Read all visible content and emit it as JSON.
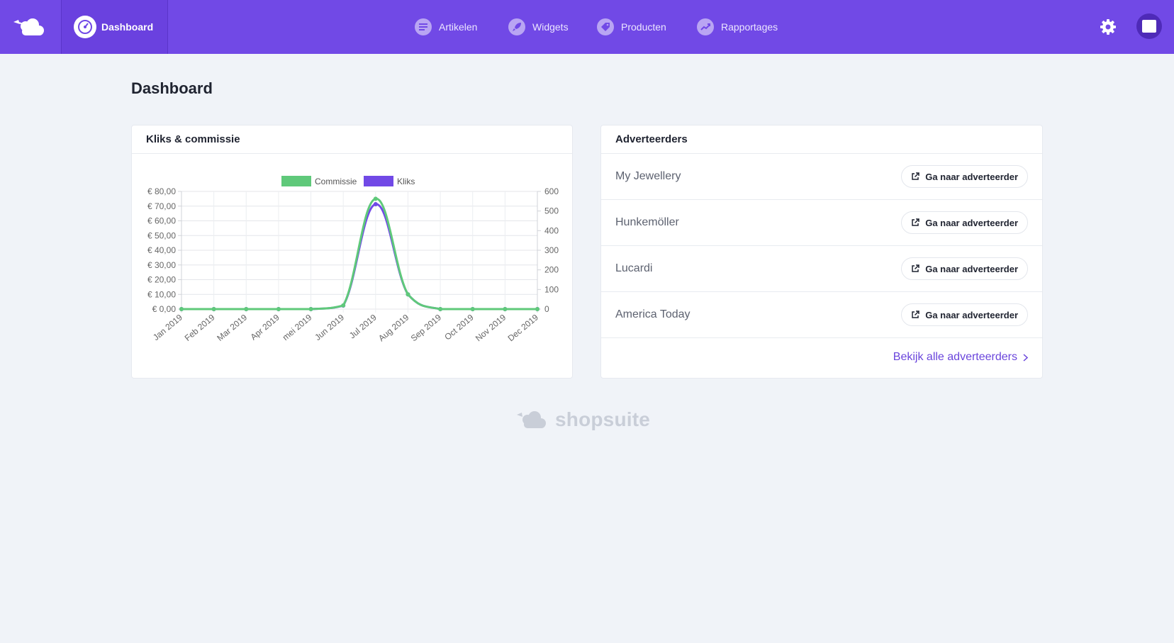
{
  "nav": {
    "dashboard_label": "Dashboard",
    "items": [
      {
        "label": "Artikelen",
        "icon": "list-icon"
      },
      {
        "label": "Widgets",
        "icon": "rocket-icon"
      },
      {
        "label": "Producten",
        "icon": "tag-icon"
      },
      {
        "label": "Rapportages",
        "icon": "trend-icon"
      }
    ]
  },
  "page": {
    "title": "Dashboard"
  },
  "chart_card": {
    "title": "Kliks & commissie"
  },
  "chart_data": {
    "type": "line",
    "categories": [
      "Jan 2019",
      "Feb 2019",
      "Mar 2019",
      "Apr 2019",
      "mei 2019",
      "Jun 2019",
      "Jul 2019",
      "Aug 2019",
      "Sep 2019",
      "Oct 2019",
      "Nov 2019",
      "Dec 2019"
    ],
    "series": [
      {
        "name": "Commissie",
        "axis": "left",
        "color": "#5fc97a",
        "values": [
          0,
          0,
          0,
          0,
          0,
          2.5,
          75,
          10,
          0,
          0,
          0,
          0
        ]
      },
      {
        "name": "Kliks",
        "axis": "right",
        "color": "#7149e6",
        "values": [
          0,
          0,
          0,
          0,
          0,
          18,
          535,
          75,
          0,
          0,
          0,
          0
        ]
      }
    ],
    "y_left": {
      "min": 0,
      "max": 80,
      "ticks": [
        "€ 0,00",
        "€ 10,00",
        "€ 20,00",
        "€ 30,00",
        "€ 40,00",
        "€ 50,00",
        "€ 60,00",
        "€ 70,00",
        "€ 80,00"
      ]
    },
    "y_right": {
      "min": 0,
      "max": 600,
      "ticks": [
        "0",
        "100",
        "200",
        "300",
        "400",
        "500",
        "600"
      ]
    },
    "legend": "top",
    "grid": true
  },
  "advertisers": {
    "title": "Adverteerders",
    "button_label": "Ga naar adverteerder",
    "items": [
      "My Jewellery",
      "Hunkemöller",
      "Lucardi",
      "America Today"
    ],
    "all_link": "Bekijk alle adverteerders"
  },
  "footer": {
    "brand": "shopsuite"
  }
}
